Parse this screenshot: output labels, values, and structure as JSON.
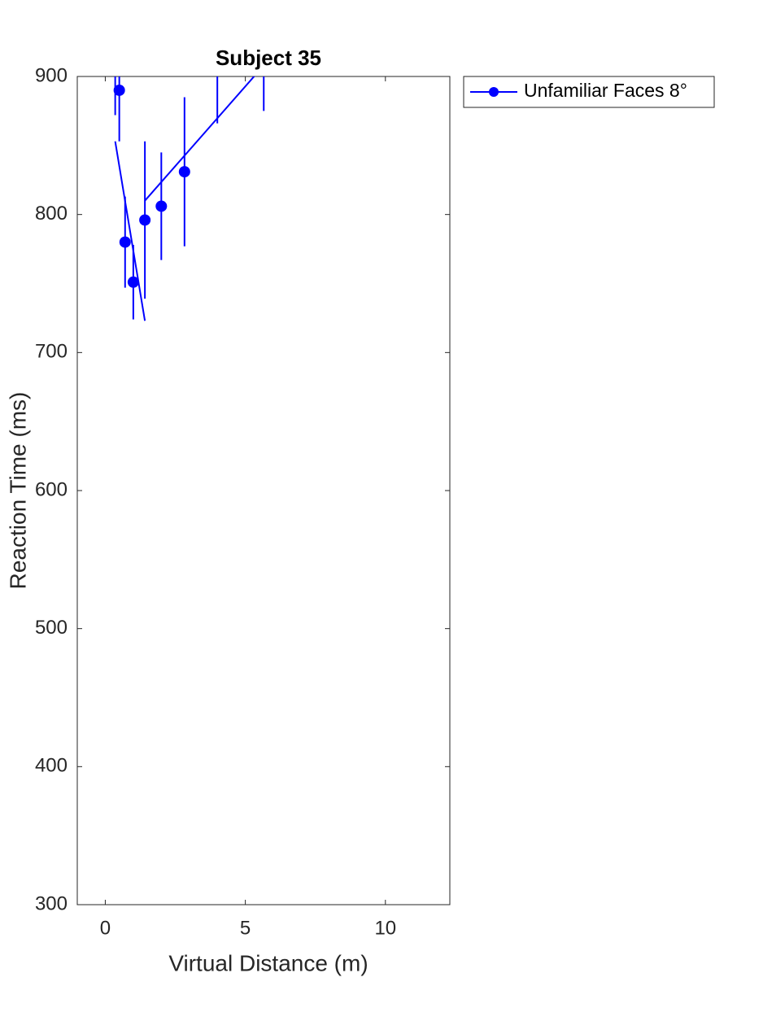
{
  "chart_data": {
    "type": "errorbar",
    "title": "Subject 35",
    "xlabel": "Virtual Distance (m)",
    "ylabel": "Reaction Time (ms)",
    "xlim": [
      -1,
      12.3
    ],
    "xticks": [
      0,
      5,
      10
    ],
    "ylim": [
      300,
      900
    ],
    "yticks": [
      300,
      400,
      500,
      600,
      700,
      800,
      900
    ],
    "legend": "outside-top-right",
    "series": [
      {
        "name": "Unfamiliar Faces 8°",
        "color": "#0000ff",
        "x": [
          0.354,
          0.5,
          0.707,
          1.0,
          1.414,
          2.0,
          2.828,
          4.0,
          5.657
        ],
        "values": [
          920,
          890,
          780,
          751,
          796,
          806,
          831,
          935,
          930
        ],
        "errors": [
          48,
          37,
          33,
          27,
          57,
          39,
          54,
          69,
          55
        ]
      }
    ],
    "fit_lines": [
      {
        "color": "#0000ff",
        "x": [
          0.354,
          1.414
        ],
        "values": [
          853,
          723
        ]
      },
      {
        "color": "#0000ff",
        "x": [
          1.414,
          5.657
        ],
        "values": [
          810,
          908
        ]
      }
    ]
  }
}
